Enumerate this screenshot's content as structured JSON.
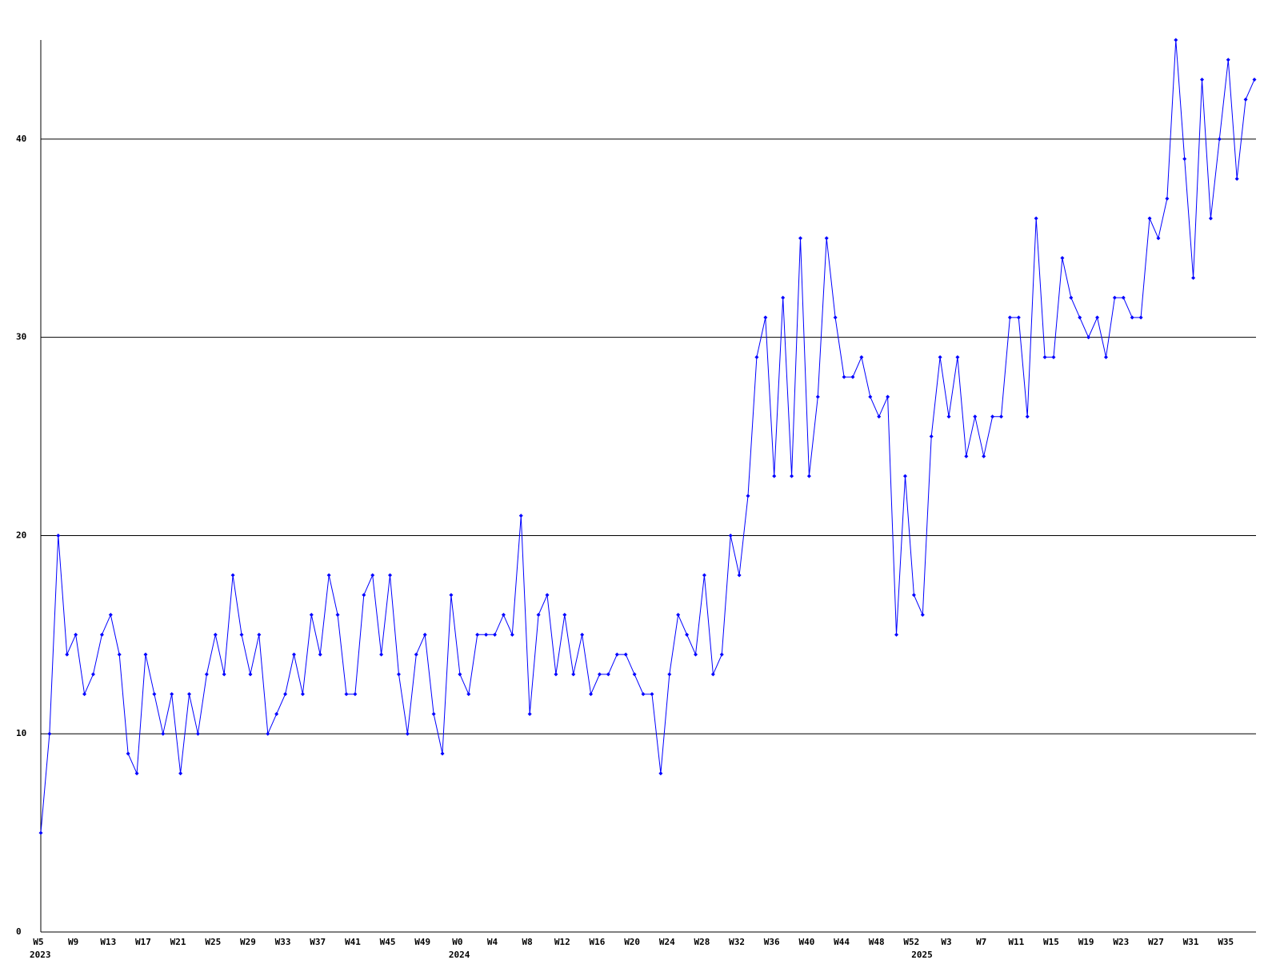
{
  "chart_data": {
    "type": "line",
    "categories": [
      "W5",
      null,
      null,
      null,
      "W9",
      null,
      null,
      null,
      "W13",
      null,
      null,
      null,
      "W17",
      null,
      null,
      null,
      "W21",
      null,
      null,
      null,
      "W25",
      null,
      null,
      null,
      "W29",
      null,
      null,
      null,
      "W33",
      null,
      null,
      null,
      "W37",
      null,
      null,
      null,
      "W41",
      null,
      null,
      null,
      "W45",
      null,
      null,
      null,
      "W49",
      null,
      null,
      null,
      "W0",
      null,
      null,
      null,
      "W4",
      null,
      null,
      null,
      "W8",
      null,
      null,
      null,
      "W12",
      null,
      null,
      null,
      "W16",
      null,
      null,
      null,
      "W20",
      null,
      null,
      null,
      "W24",
      null,
      null,
      null,
      "W28",
      null,
      null,
      null,
      "W32",
      null,
      null,
      null,
      "W36",
      null,
      null,
      null,
      "W40",
      null,
      null,
      null,
      "W44",
      null,
      null,
      null,
      "W48",
      null,
      null,
      null,
      "W52",
      null,
      null,
      null,
      "W3",
      null,
      null,
      null,
      "W7",
      null,
      null,
      null,
      "W11",
      null,
      null,
      null,
      "W15",
      null,
      null,
      null,
      "W19",
      null,
      null,
      null,
      "W23",
      null,
      null,
      null,
      "W27",
      null,
      null,
      null,
      "W31",
      null,
      null,
      null,
      "W35",
      null,
      null,
      null
    ],
    "category_years": [
      "2023",
      null,
      null,
      null,
      null,
      null,
      null,
      null,
      null,
      null,
      null,
      null,
      null,
      null,
      null,
      null,
      null,
      null,
      null,
      null,
      null,
      null,
      null,
      null,
      null,
      null,
      null,
      null,
      null,
      null,
      null,
      null,
      null,
      null,
      null,
      null,
      null,
      null,
      null,
      null,
      null,
      null,
      null,
      null,
      null,
      null,
      null,
      null,
      "2024",
      null,
      null,
      null,
      null,
      null,
      null,
      null,
      null,
      null,
      null,
      null,
      null,
      null,
      null,
      null,
      null,
      null,
      null,
      null,
      null,
      null,
      null,
      null,
      null,
      null,
      null,
      null,
      null,
      null,
      null,
      null,
      null,
      null,
      null,
      null,
      null,
      null,
      null,
      null,
      null,
      null,
      null,
      null,
      null,
      null,
      null,
      null,
      null,
      null,
      null,
      null,
      null,
      "2025",
      null,
      null,
      null,
      null,
      null,
      null,
      null,
      null,
      null,
      null,
      null,
      null,
      null,
      null,
      null,
      null,
      null,
      null,
      null,
      null,
      null,
      null,
      null,
      null,
      null,
      null,
      null,
      null,
      null,
      null,
      null,
      null,
      null,
      null,
      null,
      null,
      null,
      null
    ],
    "values": [
      5,
      10,
      20,
      14,
      15,
      12,
      13,
      15,
      16,
      14,
      9,
      8,
      14,
      12,
      10,
      12,
      8,
      12,
      10,
      13,
      15,
      13,
      18,
      15,
      13,
      15,
      10,
      11,
      12,
      14,
      12,
      16,
      14,
      18,
      16,
      12,
      12,
      17,
      18,
      14,
      18,
      13,
      10,
      14,
      15,
      11,
      9,
      17,
      13,
      12,
      15,
      15,
      15,
      16,
      15,
      21,
      11,
      16,
      17,
      13,
      16,
      13,
      15,
      12,
      13,
      13,
      14,
      14,
      13,
      12,
      12,
      8,
      13,
      16,
      15,
      14,
      18,
      13,
      14,
      20,
      18,
      22,
      29,
      31,
      23,
      32,
      23,
      35,
      23,
      27,
      35,
      31,
      28,
      28,
      29,
      27,
      26,
      27,
      15,
      23,
      17,
      16,
      25,
      29,
      26,
      29,
      24,
      26,
      24,
      26,
      26,
      31,
      31,
      26,
      36,
      29,
      29,
      34,
      32,
      31,
      30,
      31,
      29,
      32,
      32,
      31,
      31,
      36,
      35,
      37,
      45,
      39,
      33,
      43,
      36,
      40,
      44,
      38,
      42,
      43
    ],
    "color": "#0000ff",
    "ylim": [
      0,
      45
    ],
    "yticks": [
      0,
      10,
      20,
      30,
      40
    ],
    "grid": true
  }
}
